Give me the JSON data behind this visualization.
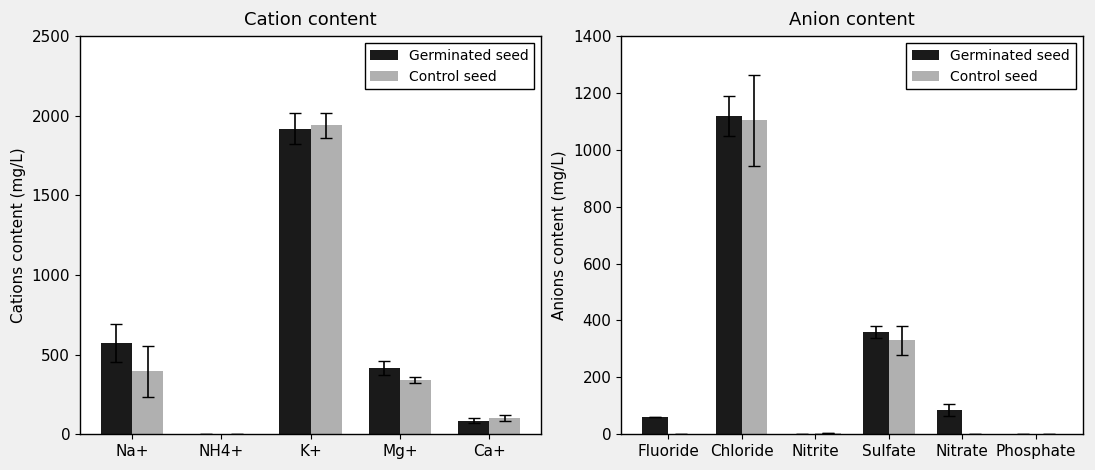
{
  "cation": {
    "title": "Cation content",
    "ylabel": "Cations content (mg/L)",
    "categories": [
      "Na+",
      "NH4+",
      "K+",
      "Mg+",
      "Ca+"
    ],
    "germinated": [
      575,
      0,
      1920,
      415,
      85
    ],
    "control": [
      395,
      0,
      1940,
      340,
      100
    ],
    "germinated_err": [
      120,
      0,
      95,
      45,
      15
    ],
    "control_err": [
      160,
      0,
      80,
      20,
      20
    ],
    "ylim": [
      0,
      2500
    ],
    "yticks": [
      0,
      500,
      1000,
      1500,
      2000,
      2500
    ]
  },
  "anion": {
    "title": "Anion content",
    "ylabel": "Anions content (mg/L)",
    "categories": [
      "Fluoride",
      "Chloride",
      "Nitrite",
      "Sulfate",
      "Nitrate",
      "Phosphate"
    ],
    "germinated": [
      60,
      1120,
      0,
      360,
      85,
      0
    ],
    "control": [
      0,
      1105,
      5,
      330,
      0,
      0
    ],
    "germinated_err": [
      0,
      70,
      0,
      20,
      20,
      0
    ],
    "control_err": [
      0,
      160,
      0,
      50,
      0,
      0
    ],
    "ylim": [
      0,
      1400
    ],
    "yticks": [
      0,
      200,
      400,
      600,
      800,
      1000,
      1200,
      1400
    ]
  },
  "bar_width": 0.35,
  "germinated_color": "#1a1a1a",
  "control_color": "#b0b0b0",
  "legend_labels": [
    "Germinated seed",
    "Control seed"
  ],
  "figure_bg": "#f0f0f0",
  "axes_bg": "#ffffff",
  "font_size": 11,
  "title_font_size": 13
}
